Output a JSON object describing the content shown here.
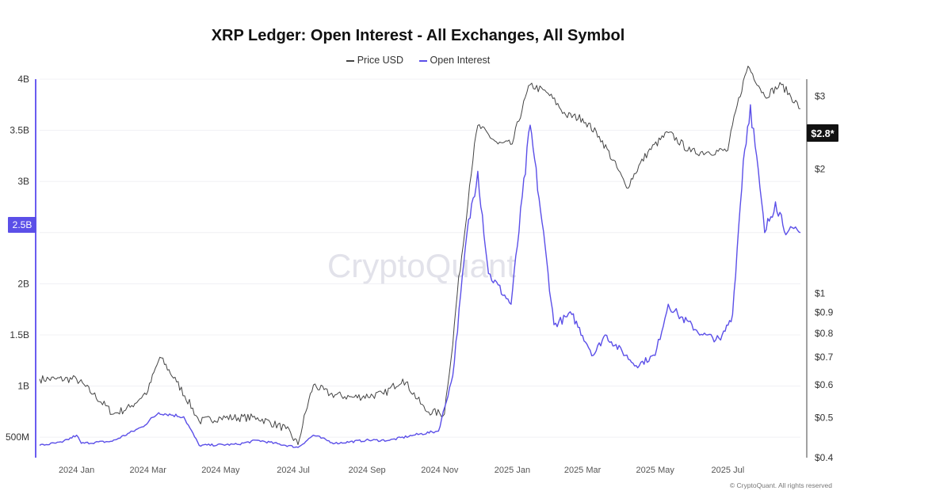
{
  "chart_data": {
    "type": "line",
    "title": "XRP Ledger: Open Interest - All Exchanges, All Symbol",
    "legend_placement": "top-center",
    "grid": true,
    "watermark": "CryptoQuant",
    "copyright": "© CryptoQuant. All rights reserved",
    "colors": {
      "price": "#444444",
      "open_interest": "#5b4fe8"
    },
    "x_ticks": [
      "2024 Jan",
      "2024 Mar",
      "2024 May",
      "2024 Jul",
      "2024 Sep",
      "2024 Nov",
      "2025 Jan",
      "2025 Mar",
      "2025 May",
      "2025 Jul"
    ],
    "y_left": {
      "ticks": [
        "4B",
        "3.5B",
        "3B",
        "2.5B",
        "2B",
        "1.5B",
        "1B",
        "500M"
      ],
      "ylim": [
        300000000,
        4000000000
      ]
    },
    "y_right": {
      "scale": "log",
      "ticks": [
        "$3",
        "$2",
        "$1",
        "$0.9",
        "$0.8",
        "$0.7",
        "$0.6",
        "$0.5",
        "$0.4"
      ],
      "ylim": [
        0.4,
        3.3
      ]
    },
    "current_value_badges": {
      "left": "2.5B",
      "right": "$2.8*"
    },
    "series": [
      {
        "name": "Price USD",
        "axis": "right",
        "points": [
          [
            "2023-12-01",
            0.62
          ],
          [
            "2023-12-15",
            0.62
          ],
          [
            "2024-01-01",
            0.62
          ],
          [
            "2024-01-15",
            0.57
          ],
          [
            "2024-02-01",
            0.51
          ],
          [
            "2024-02-15",
            0.53
          ],
          [
            "2024-03-01",
            0.58
          ],
          [
            "2024-03-11",
            0.7
          ],
          [
            "2024-03-25",
            0.61
          ],
          [
            "2024-04-13",
            0.49
          ],
          [
            "2024-05-01",
            0.5
          ],
          [
            "2024-06-01",
            0.5
          ],
          [
            "2024-06-25",
            0.47
          ],
          [
            "2024-07-05",
            0.43
          ],
          [
            "2024-07-18",
            0.6
          ],
          [
            "2024-08-01",
            0.57
          ],
          [
            "2024-08-20",
            0.56
          ],
          [
            "2024-09-15",
            0.57
          ],
          [
            "2024-10-01",
            0.62
          ],
          [
            "2024-10-20",
            0.52
          ],
          [
            "2024-11-05",
            0.51
          ],
          [
            "2024-11-12",
            0.75
          ],
          [
            "2024-11-22",
            1.4
          ],
          [
            "2024-12-03",
            2.55
          ],
          [
            "2024-12-20",
            2.3
          ],
          [
            "2025-01-01",
            2.3
          ],
          [
            "2025-01-16",
            3.2
          ],
          [
            "2025-01-31",
            3.05
          ],
          [
            "2025-02-15",
            2.7
          ],
          [
            "2025-03-01",
            2.65
          ],
          [
            "2025-03-15",
            2.4
          ],
          [
            "2025-04-07",
            1.8
          ],
          [
            "2025-04-25",
            2.2
          ],
          [
            "2025-05-12",
            2.45
          ],
          [
            "2025-05-31",
            2.2
          ],
          [
            "2025-06-15",
            2.2
          ],
          [
            "2025-07-01",
            2.22
          ],
          [
            "2025-07-18",
            3.55
          ],
          [
            "2025-08-01",
            3.0
          ],
          [
            "2025-08-15",
            3.2
          ],
          [
            "2025-08-31",
            2.8
          ]
        ]
      },
      {
        "name": "Open Interest",
        "axis": "left",
        "points": [
          [
            "2023-12-01",
            420000000
          ],
          [
            "2023-12-20",
            450000000
          ],
          [
            "2024-01-01",
            520000000
          ],
          [
            "2024-01-05",
            440000000
          ],
          [
            "2024-01-31",
            460000000
          ],
          [
            "2024-02-25",
            600000000
          ],
          [
            "2024-03-10",
            740000000
          ],
          [
            "2024-03-31",
            700000000
          ],
          [
            "2024-04-13",
            420000000
          ],
          [
            "2024-05-15",
            430000000
          ],
          [
            "2024-06-01",
            470000000
          ],
          [
            "2024-07-05",
            400000000
          ],
          [
            "2024-07-18",
            520000000
          ],
          [
            "2024-08-05",
            440000000
          ],
          [
            "2024-08-31",
            470000000
          ],
          [
            "2024-09-20",
            470000000
          ],
          [
            "2024-10-10",
            520000000
          ],
          [
            "2024-10-31",
            560000000
          ],
          [
            "2024-11-12",
            1100000000
          ],
          [
            "2024-11-24",
            2500000000
          ],
          [
            "2024-12-03",
            3100000000
          ],
          [
            "2024-12-12",
            2100000000
          ],
          [
            "2024-12-31",
            1800000000
          ],
          [
            "2025-01-16",
            3550000000
          ],
          [
            "2025-01-26",
            2600000000
          ],
          [
            "2025-02-05",
            1600000000
          ],
          [
            "2025-02-20",
            1700000000
          ],
          [
            "2025-03-10",
            1300000000
          ],
          [
            "2025-03-20",
            1500000000
          ],
          [
            "2025-04-15",
            1200000000
          ],
          [
            "2025-05-01",
            1300000000
          ],
          [
            "2025-05-12",
            1800000000
          ],
          [
            "2025-05-20",
            1700000000
          ],
          [
            "2025-06-10",
            1500000000
          ],
          [
            "2025-06-25",
            1450000000
          ],
          [
            "2025-07-05",
            1700000000
          ],
          [
            "2025-07-14",
            3200000000
          ],
          [
            "2025-07-20",
            3750000000
          ],
          [
            "2025-08-01",
            2500000000
          ],
          [
            "2025-08-10",
            2800000000
          ],
          [
            "2025-08-20",
            2500000000
          ],
          [
            "2025-08-31",
            2500000000
          ]
        ]
      }
    ]
  }
}
